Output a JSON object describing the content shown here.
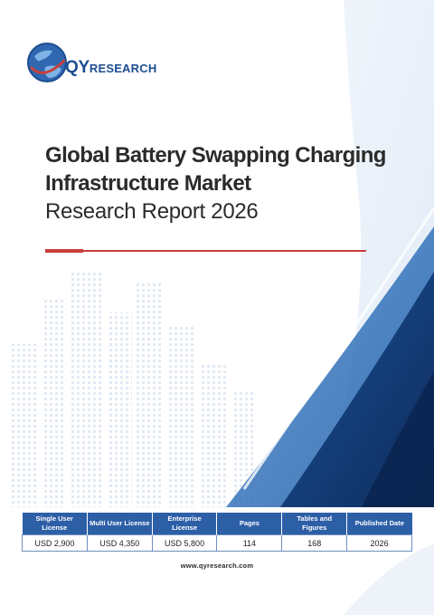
{
  "brand": {
    "logo_prefix": "QY",
    "logo_suffix": "RESEARCH",
    "accent": "#c7403a",
    "primary": "#1c4d91"
  },
  "report": {
    "title_line1": "Global Battery Swapping Charging",
    "title_line2": "Infrastructure Market",
    "title_line3": "Research Report 2026"
  },
  "table": {
    "headers": [
      "Single User License",
      "Multi User License",
      "Enterprise License",
      "Pages",
      "Tables and Figures",
      "Published Date"
    ],
    "values": [
      "USD 2,900",
      "USD 4,350",
      "USD 5,800",
      "114",
      "168",
      "2026"
    ]
  },
  "footer": {
    "website": "www.qyresearch.com"
  }
}
